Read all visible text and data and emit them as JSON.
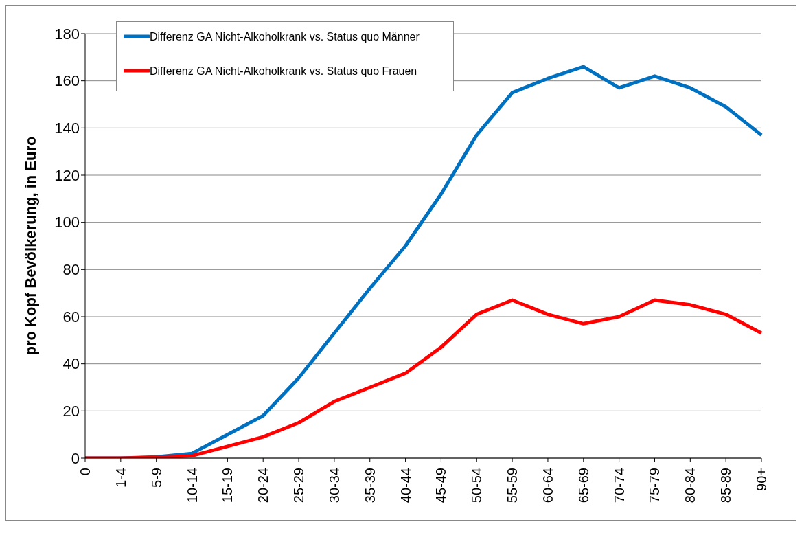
{
  "chart_data": {
    "type": "line",
    "ylabel": "pro Kopf Bevölkerung, in Euro",
    "categories": [
      "0",
      "1-4",
      "5-9",
      "10-14",
      "15-19",
      "20-24",
      "25-29",
      "30-34",
      "35-39",
      "40-44",
      "45-49",
      "50-54",
      "55-59",
      "60-64",
      "65-69",
      "70-74",
      "75-79",
      "80-84",
      "85-89",
      "90+"
    ],
    "series": [
      {
        "name": "Differenz GA Nicht-Alkoholkrank vs. Status quo Männer",
        "color": "#0070c0",
        "values": [
          0,
          0,
          0.5,
          2,
          10,
          18,
          34,
          53,
          72,
          90,
          112,
          137,
          155,
          161,
          166,
          157,
          162,
          157,
          149,
          137
        ]
      },
      {
        "name": "Differenz GA Nicht-Alkoholkrank vs. Status quo Frauen",
        "color": "#ff0000",
        "values": [
          0,
          0,
          0.3,
          1,
          5,
          9,
          15,
          24,
          30,
          36,
          47,
          61,
          67,
          61,
          57,
          60,
          67,
          65,
          61,
          53
        ]
      }
    ],
    "ylim": [
      0,
      180
    ],
    "yticks": [
      0,
      20,
      40,
      60,
      80,
      100,
      120,
      140,
      160,
      180
    ],
    "grid": "y",
    "legend": "top left",
    "marker": "none",
    "line_style": "solid"
  }
}
